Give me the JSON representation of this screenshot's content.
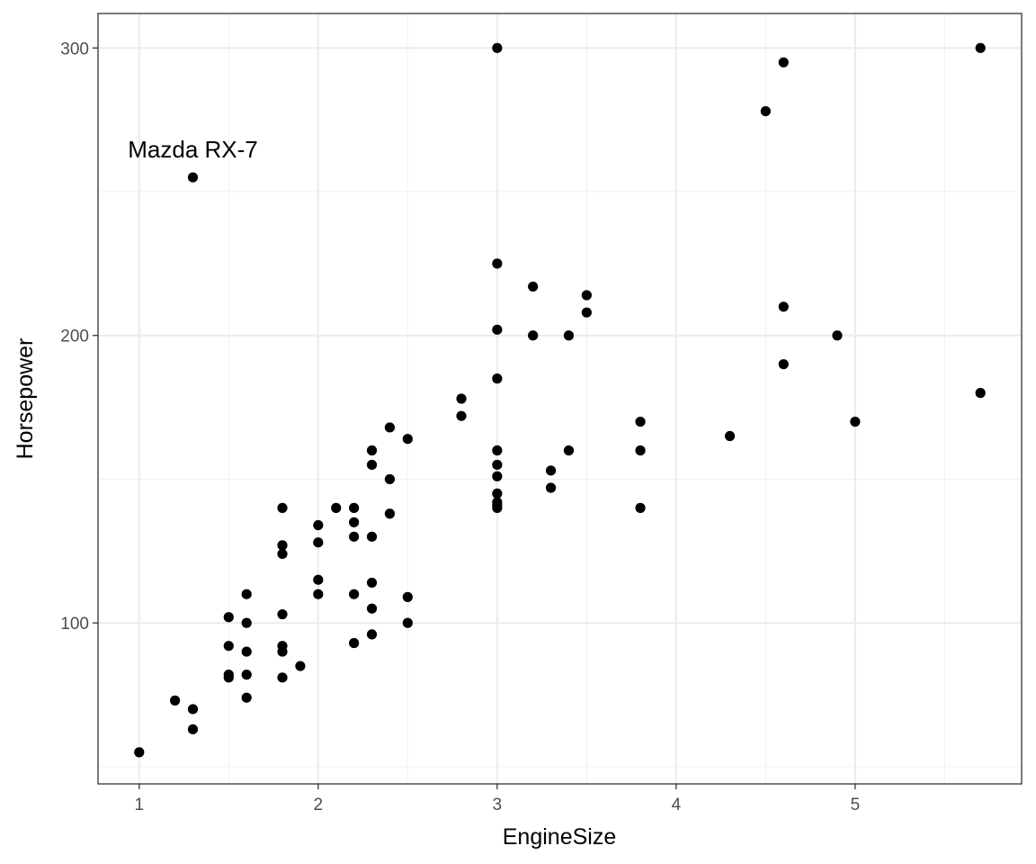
{
  "chart_data": {
    "type": "scatter",
    "title": "",
    "xlabel": "EngineSize",
    "ylabel": "Horsepower",
    "xlim": [
      0.77,
      5.93
    ],
    "ylim": [
      44.0,
      312.0
    ],
    "x_ticks": [
      1,
      2,
      3,
      4,
      5
    ],
    "y_ticks": [
      100,
      200,
      300
    ],
    "x_tick_labels": [
      "1",
      "2",
      "3",
      "4",
      "5"
    ],
    "y_tick_labels": [
      "100",
      "200",
      "300"
    ],
    "grid": true,
    "theme": "bw",
    "point_color": "#000000",
    "grid_major_color": "#ebebeb",
    "grid_minor_color": "#f2f2f2",
    "panel_border_color": "#333333",
    "points": [
      {
        "x": 1.0,
        "y": 55
      },
      {
        "x": 1.2,
        "y": 73
      },
      {
        "x": 1.3,
        "y": 63
      },
      {
        "x": 1.3,
        "y": 70
      },
      {
        "x": 1.3,
        "y": 255
      },
      {
        "x": 1.5,
        "y": 102
      },
      {
        "x": 1.5,
        "y": 92
      },
      {
        "x": 1.5,
        "y": 82
      },
      {
        "x": 1.5,
        "y": 81
      },
      {
        "x": 1.6,
        "y": 110
      },
      {
        "x": 1.6,
        "y": 100
      },
      {
        "x": 1.6,
        "y": 90
      },
      {
        "x": 1.6,
        "y": 82
      },
      {
        "x": 1.6,
        "y": 74
      },
      {
        "x": 1.8,
        "y": 140
      },
      {
        "x": 1.8,
        "y": 127
      },
      {
        "x": 1.8,
        "y": 124
      },
      {
        "x": 1.8,
        "y": 103
      },
      {
        "x": 1.8,
        "y": 92
      },
      {
        "x": 1.8,
        "y": 90
      },
      {
        "x": 1.8,
        "y": 81
      },
      {
        "x": 1.9,
        "y": 85
      },
      {
        "x": 2.0,
        "y": 134
      },
      {
        "x": 2.0,
        "y": 128
      },
      {
        "x": 2.0,
        "y": 115
      },
      {
        "x": 2.0,
        "y": 110
      },
      {
        "x": 2.1,
        "y": 140
      },
      {
        "x": 2.2,
        "y": 140
      },
      {
        "x": 2.2,
        "y": 135
      },
      {
        "x": 2.2,
        "y": 130
      },
      {
        "x": 2.2,
        "y": 110
      },
      {
        "x": 2.2,
        "y": 93
      },
      {
        "x": 2.3,
        "y": 160
      },
      {
        "x": 2.3,
        "y": 155
      },
      {
        "x": 2.3,
        "y": 130
      },
      {
        "x": 2.3,
        "y": 114
      },
      {
        "x": 2.3,
        "y": 105
      },
      {
        "x": 2.3,
        "y": 96
      },
      {
        "x": 2.4,
        "y": 168
      },
      {
        "x": 2.4,
        "y": 150
      },
      {
        "x": 2.4,
        "y": 138
      },
      {
        "x": 2.5,
        "y": 164
      },
      {
        "x": 2.5,
        "y": 109
      },
      {
        "x": 2.5,
        "y": 100
      },
      {
        "x": 2.8,
        "y": 178
      },
      {
        "x": 2.8,
        "y": 172
      },
      {
        "x": 3.0,
        "y": 300
      },
      {
        "x": 3.0,
        "y": 225
      },
      {
        "x": 3.0,
        "y": 202
      },
      {
        "x": 3.0,
        "y": 185
      },
      {
        "x": 3.0,
        "y": 160
      },
      {
        "x": 3.0,
        "y": 155
      },
      {
        "x": 3.0,
        "y": 151
      },
      {
        "x": 3.0,
        "y": 145
      },
      {
        "x": 3.0,
        "y": 142
      },
      {
        "x": 3.0,
        "y": 141
      },
      {
        "x": 3.0,
        "y": 140
      },
      {
        "x": 3.2,
        "y": 217
      },
      {
        "x": 3.2,
        "y": 200
      },
      {
        "x": 3.3,
        "y": 153
      },
      {
        "x": 3.3,
        "y": 147
      },
      {
        "x": 3.4,
        "y": 200
      },
      {
        "x": 3.4,
        "y": 160
      },
      {
        "x": 3.5,
        "y": 214
      },
      {
        "x": 3.5,
        "y": 208
      },
      {
        "x": 3.8,
        "y": 170
      },
      {
        "x": 3.8,
        "y": 160
      },
      {
        "x": 3.8,
        "y": 140
      },
      {
        "x": 4.3,
        "y": 165
      },
      {
        "x": 4.5,
        "y": 278
      },
      {
        "x": 4.6,
        "y": 295
      },
      {
        "x": 4.6,
        "y": 210
      },
      {
        "x": 4.6,
        "y": 190
      },
      {
        "x": 4.9,
        "y": 200
      },
      {
        "x": 5.0,
        "y": 170
      },
      {
        "x": 5.7,
        "y": 300
      },
      {
        "x": 5.7,
        "y": 180
      }
    ],
    "annotations": [
      {
        "text": "Mazda RX-7",
        "x": 1.3,
        "y": 255
      }
    ]
  }
}
